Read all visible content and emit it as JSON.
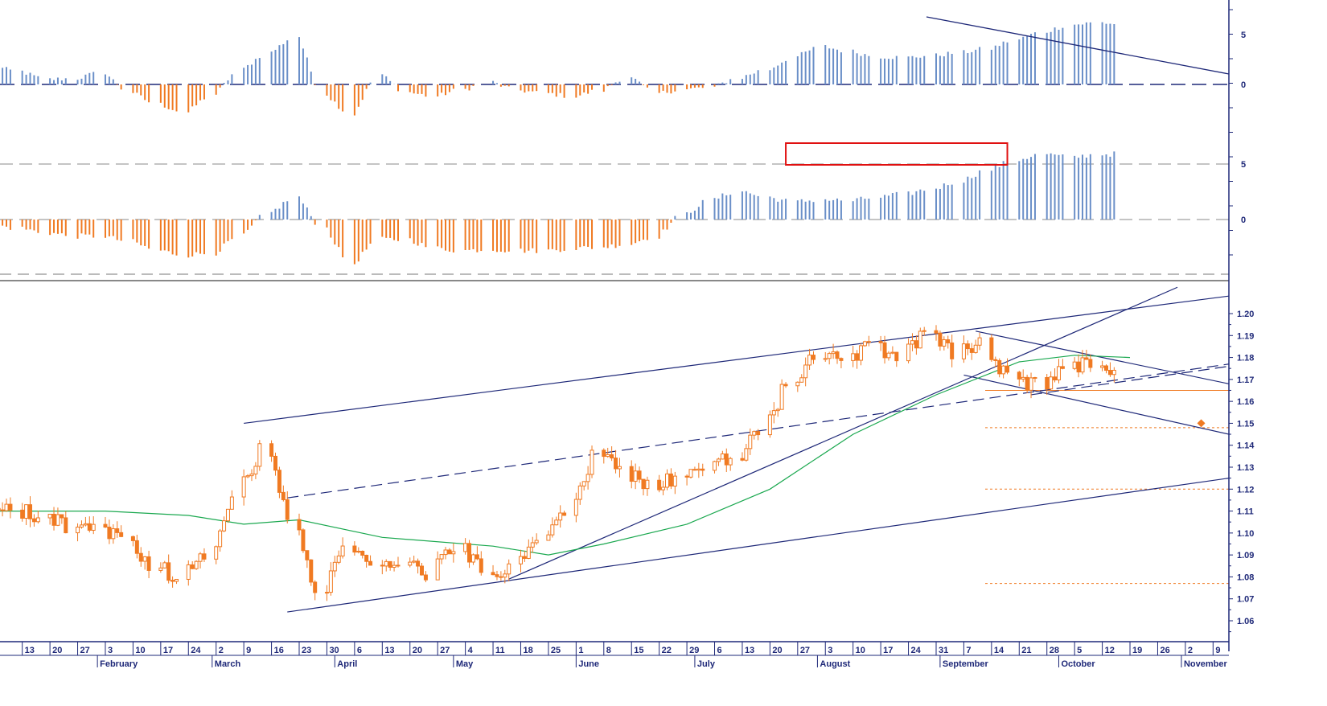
{
  "chart_data": [
    {
      "type": "bar",
      "panel": "oscillator-1",
      "yticks": [
        {
          "value": 5,
          "label": "5"
        },
        {
          "value": 0,
          "label": "0"
        }
      ],
      "ylim": [
        -3.5,
        7.5
      ],
      "start_date": "2020-01-06",
      "weekly_values": [
        1.8,
        1.3,
        0.5,
        0.6,
        1.2,
        -0.8,
        -2.0,
        -2.8,
        -1.0,
        1.5,
        3.2,
        4.8,
        -1.0,
        -3.0,
        1.0,
        -0.8,
        -1.2,
        -0.5,
        0.2,
        -0.6,
        -0.9,
        -1.2,
        -0.6,
        0.8,
        -0.9,
        -0.5,
        -0.3,
        0.7,
        1.5,
        2.8,
        3.8,
        3.3,
        2.8,
        2.7,
        2.9,
        3.2,
        3.6,
        4.5,
        5.3,
        6.0,
        6.2,
        6.0,
        5.8,
        6.1,
        5.7,
        5.6,
        5.4,
        4.8,
        4.3,
        3.2,
        3.0,
        3.3,
        3.5,
        3.4,
        3.3,
        2.8
      ],
      "colors": {
        "positive": "#6a8fc8",
        "negative": "#f07a22"
      },
      "trendline": "descending",
      "zero_line": "dashed"
    },
    {
      "type": "bar",
      "panel": "oscillator-2",
      "yticks": [
        {
          "value": 5,
          "label": "5"
        },
        {
          "value": 0,
          "label": "0"
        }
      ],
      "ylim": [
        -5,
        7.5
      ],
      "start_date": "2020-01-06",
      "weekly_values": [
        -0.5,
        -0.8,
        -1.2,
        -1.5,
        -1.5,
        -2.0,
        -2.8,
        -3.2,
        -3.0,
        -1.5,
        0.6,
        2.0,
        -0.8,
        -4.0,
        -1.8,
        -1.8,
        -2.6,
        -2.8,
        -2.7,
        -2.8,
        -2.8,
        -2.6,
        -2.5,
        -2.2,
        -1.5,
        0.5,
        1.8,
        2.6,
        2.0,
        1.6,
        1.8,
        1.7,
        2.0,
        2.3,
        2.8,
        3.5,
        4.5,
        5.4,
        5.9,
        5.6,
        5.9,
        5.9,
        5.5,
        5.8,
        5.5,
        5.3,
        5.4,
        5.2,
        4.2,
        4.6,
        4.8,
        4.9,
        4.7,
        4.3
      ],
      "colors": {
        "positive": "#6a8fc8",
        "negative": "#f07a22"
      },
      "highlight": {
        "from": "2020-07-24",
        "to": "2020-09-18",
        "color": "#e01010"
      },
      "reference_lines": [
        5,
        0
      ]
    },
    {
      "type": "candlestick",
      "panel": "price",
      "ylim": [
        1.053,
        1.208
      ],
      "ytick_labels": [
        "1.20",
        "1.19",
        "1.18",
        "1.17",
        "1.16",
        "1.15",
        "1.14",
        "1.13",
        "1.12",
        "1.11",
        "1.10",
        "1.09",
        "1.08",
        "1.07",
        "1.06"
      ],
      "ytick_values": [
        1.2,
        1.19,
        1.18,
        1.17,
        1.16,
        1.15,
        1.14,
        1.13,
        1.12,
        1.11,
        1.1,
        1.09,
        1.08,
        1.07,
        1.06
      ],
      "x_range": [
        "2020-01-09",
        "2020-11-13"
      ],
      "weekly_close_path": [
        [
          "2020-01-06",
          1.113
        ],
        [
          "2020-01-13",
          1.11
        ],
        [
          "2020-01-20",
          1.108
        ],
        [
          "2020-01-27",
          1.103
        ],
        [
          "2020-02-03",
          1.102
        ],
        [
          "2020-02-10",
          1.097
        ],
        [
          "2020-02-17",
          1.085
        ],
        [
          "2020-02-24",
          1.08
        ],
        [
          "2020-03-02",
          1.09
        ],
        [
          "2020-03-09",
          1.118
        ],
        [
          "2020-03-16",
          1.138
        ],
        [
          "2020-03-23",
          1.108
        ],
        [
          "2020-03-30",
          1.07
        ],
        [
          "2020-04-06",
          1.095
        ],
        [
          "2020-04-13",
          1.085
        ],
        [
          "2020-04-20",
          1.088
        ],
        [
          "2020-04-27",
          1.082
        ],
        [
          "2020-05-04",
          1.095
        ],
        [
          "2020-05-11",
          1.082
        ],
        [
          "2020-05-18",
          1.085
        ],
        [
          "2020-05-25",
          1.095
        ],
        [
          "2020-06-01",
          1.112
        ],
        [
          "2020-06-08",
          1.135
        ],
        [
          "2020-06-15",
          1.128
        ],
        [
          "2020-06-22",
          1.122
        ],
        [
          "2020-06-29",
          1.125
        ],
        [
          "2020-07-06",
          1.128
        ],
        [
          "2020-07-13",
          1.135
        ],
        [
          "2020-07-20",
          1.145
        ],
        [
          "2020-07-27",
          1.17
        ],
        [
          "2020-08-03",
          1.18
        ],
        [
          "2020-08-10",
          1.178
        ],
        [
          "2020-08-17",
          1.185
        ],
        [
          "2020-08-24",
          1.182
        ],
        [
          "2020-08-31",
          1.19
        ],
        [
          "2020-09-07",
          1.182
        ],
        [
          "2020-09-14",
          1.185
        ],
        [
          "2020-09-21",
          1.17
        ],
        [
          "2020-09-28",
          1.168
        ],
        [
          "2020-10-05",
          1.175
        ],
        [
          "2020-10-12",
          1.178
        ],
        [
          "2020-10-19",
          1.172
        ]
      ],
      "moving_average": [
        [
          "2020-01-06",
          1.11
        ],
        [
          "2020-02-03",
          1.11
        ],
        [
          "2020-02-24",
          1.108
        ],
        [
          "2020-03-09",
          1.104
        ],
        [
          "2020-03-23",
          1.106
        ],
        [
          "2020-04-13",
          1.098
        ],
        [
          "2020-05-11",
          1.094
        ],
        [
          "2020-05-25",
          1.09
        ],
        [
          "2020-06-08",
          1.095
        ],
        [
          "2020-06-29",
          1.104
        ],
        [
          "2020-07-20",
          1.12
        ],
        [
          "2020-08-10",
          1.145
        ],
        [
          "2020-08-31",
          1.163
        ],
        [
          "2020-09-21",
          1.178
        ],
        [
          "2020-10-05",
          1.181
        ],
        [
          "2020-10-19",
          1.18
        ]
      ],
      "colors": {
        "candles": "#f07a22",
        "moving_average": "#1aa84f",
        "trendlines": "#1e2878"
      },
      "trendlines": [
        {
          "style": "solid",
          "from": [
            "2020-03-09",
            1.15
          ],
          "to": [
            "2020-11-13",
            1.208
          ]
        },
        {
          "style": "solid",
          "from": [
            "2020-03-20",
            1.064
          ],
          "to": [
            "2020-11-13",
            1.125
          ]
        },
        {
          "style": "dashed",
          "from": [
            "2020-03-20",
            1.116
          ],
          "to": [
            "2020-11-13",
            1.177
          ]
        },
        {
          "style": "solid",
          "from": [
            "2020-05-15",
            1.079
          ],
          "to": [
            "2020-10-31",
            1.212
          ]
        },
        {
          "style": "solid",
          "from": [
            "2020-09-10",
            1.192
          ],
          "to": [
            "2020-11-13",
            1.168
          ]
        },
        {
          "style": "solid",
          "from": [
            "2020-09-07",
            1.172
          ],
          "to": [
            "2020-11-13",
            1.145
          ]
        },
        {
          "style": "dashed",
          "from": [
            "2020-09-24",
            1.163
          ],
          "to": [
            "2020-11-13",
            1.176
          ]
        }
      ],
      "support_levels": [
        {
          "value": 1.165,
          "style": "solid"
        },
        {
          "value": 1.148,
          "style": "dotted"
        },
        {
          "value": 1.12,
          "style": "dotted"
        },
        {
          "value": 1.077,
          "style": "dotted"
        }
      ],
      "target_marker": [
        "2020-11-06",
        1.15
      ]
    }
  ],
  "x_axis": {
    "day_ticks": [
      {
        "label": "13",
        "date": "2020-01-13"
      },
      {
        "label": "20",
        "date": "2020-01-20"
      },
      {
        "label": "27",
        "date": "2020-01-27"
      },
      {
        "label": "3",
        "date": "2020-02-03"
      },
      {
        "label": "10",
        "date": "2020-02-10"
      },
      {
        "label": "17",
        "date": "2020-02-17"
      },
      {
        "label": "24",
        "date": "2020-02-24"
      },
      {
        "label": "2",
        "date": "2020-03-02"
      },
      {
        "label": "9",
        "date": "2020-03-09"
      },
      {
        "label": "16",
        "date": "2020-03-16"
      },
      {
        "label": "23",
        "date": "2020-03-23"
      },
      {
        "label": "30",
        "date": "2020-03-30"
      },
      {
        "label": "6",
        "date": "2020-04-06"
      },
      {
        "label": "13",
        "date": "2020-04-13"
      },
      {
        "label": "20",
        "date": "2020-04-20"
      },
      {
        "label": "27",
        "date": "2020-04-27"
      },
      {
        "label": "4",
        "date": "2020-05-04"
      },
      {
        "label": "11",
        "date": "2020-05-11"
      },
      {
        "label": "18",
        "date": "2020-05-18"
      },
      {
        "label": "25",
        "date": "2020-05-25"
      },
      {
        "label": "1",
        "date": "2020-06-01"
      },
      {
        "label": "8",
        "date": "2020-06-08"
      },
      {
        "label": "15",
        "date": "2020-06-15"
      },
      {
        "label": "22",
        "date": "2020-06-22"
      },
      {
        "label": "29",
        "date": "2020-06-29"
      },
      {
        "label": "6",
        "date": "2020-07-06"
      },
      {
        "label": "13",
        "date": "2020-07-13"
      },
      {
        "label": "20",
        "date": "2020-07-20"
      },
      {
        "label": "27",
        "date": "2020-07-27"
      },
      {
        "label": "3",
        "date": "2020-08-03"
      },
      {
        "label": "10",
        "date": "2020-08-10"
      },
      {
        "label": "17",
        "date": "2020-08-17"
      },
      {
        "label": "24",
        "date": "2020-08-24"
      },
      {
        "label": "31",
        "date": "2020-08-31"
      },
      {
        "label": "7",
        "date": "2020-09-07"
      },
      {
        "label": "14",
        "date": "2020-09-14"
      },
      {
        "label": "21",
        "date": "2020-09-21"
      },
      {
        "label": "28",
        "date": "2020-09-28"
      },
      {
        "label": "5",
        "date": "2020-10-05"
      },
      {
        "label": "12",
        "date": "2020-10-12"
      },
      {
        "label": "19",
        "date": "2020-10-19"
      },
      {
        "label": "26",
        "date": "2020-10-26"
      },
      {
        "label": "2",
        "date": "2020-11-02"
      },
      {
        "label": "9",
        "date": "2020-11-09"
      }
    ],
    "months": [
      {
        "label": "February",
        "date": "2020-02-01"
      },
      {
        "label": "March",
        "date": "2020-03-01"
      },
      {
        "label": "April",
        "date": "2020-04-01"
      },
      {
        "label": "May",
        "date": "2020-05-01"
      },
      {
        "label": "June",
        "date": "2020-06-01"
      },
      {
        "label": "July",
        "date": "2020-07-01"
      },
      {
        "label": "August",
        "date": "2020-08-01"
      },
      {
        "label": "September",
        "date": "2020-09-01"
      },
      {
        "label": "October",
        "date": "2020-10-01"
      },
      {
        "label": "November",
        "date": "2020-11-01"
      }
    ]
  }
}
